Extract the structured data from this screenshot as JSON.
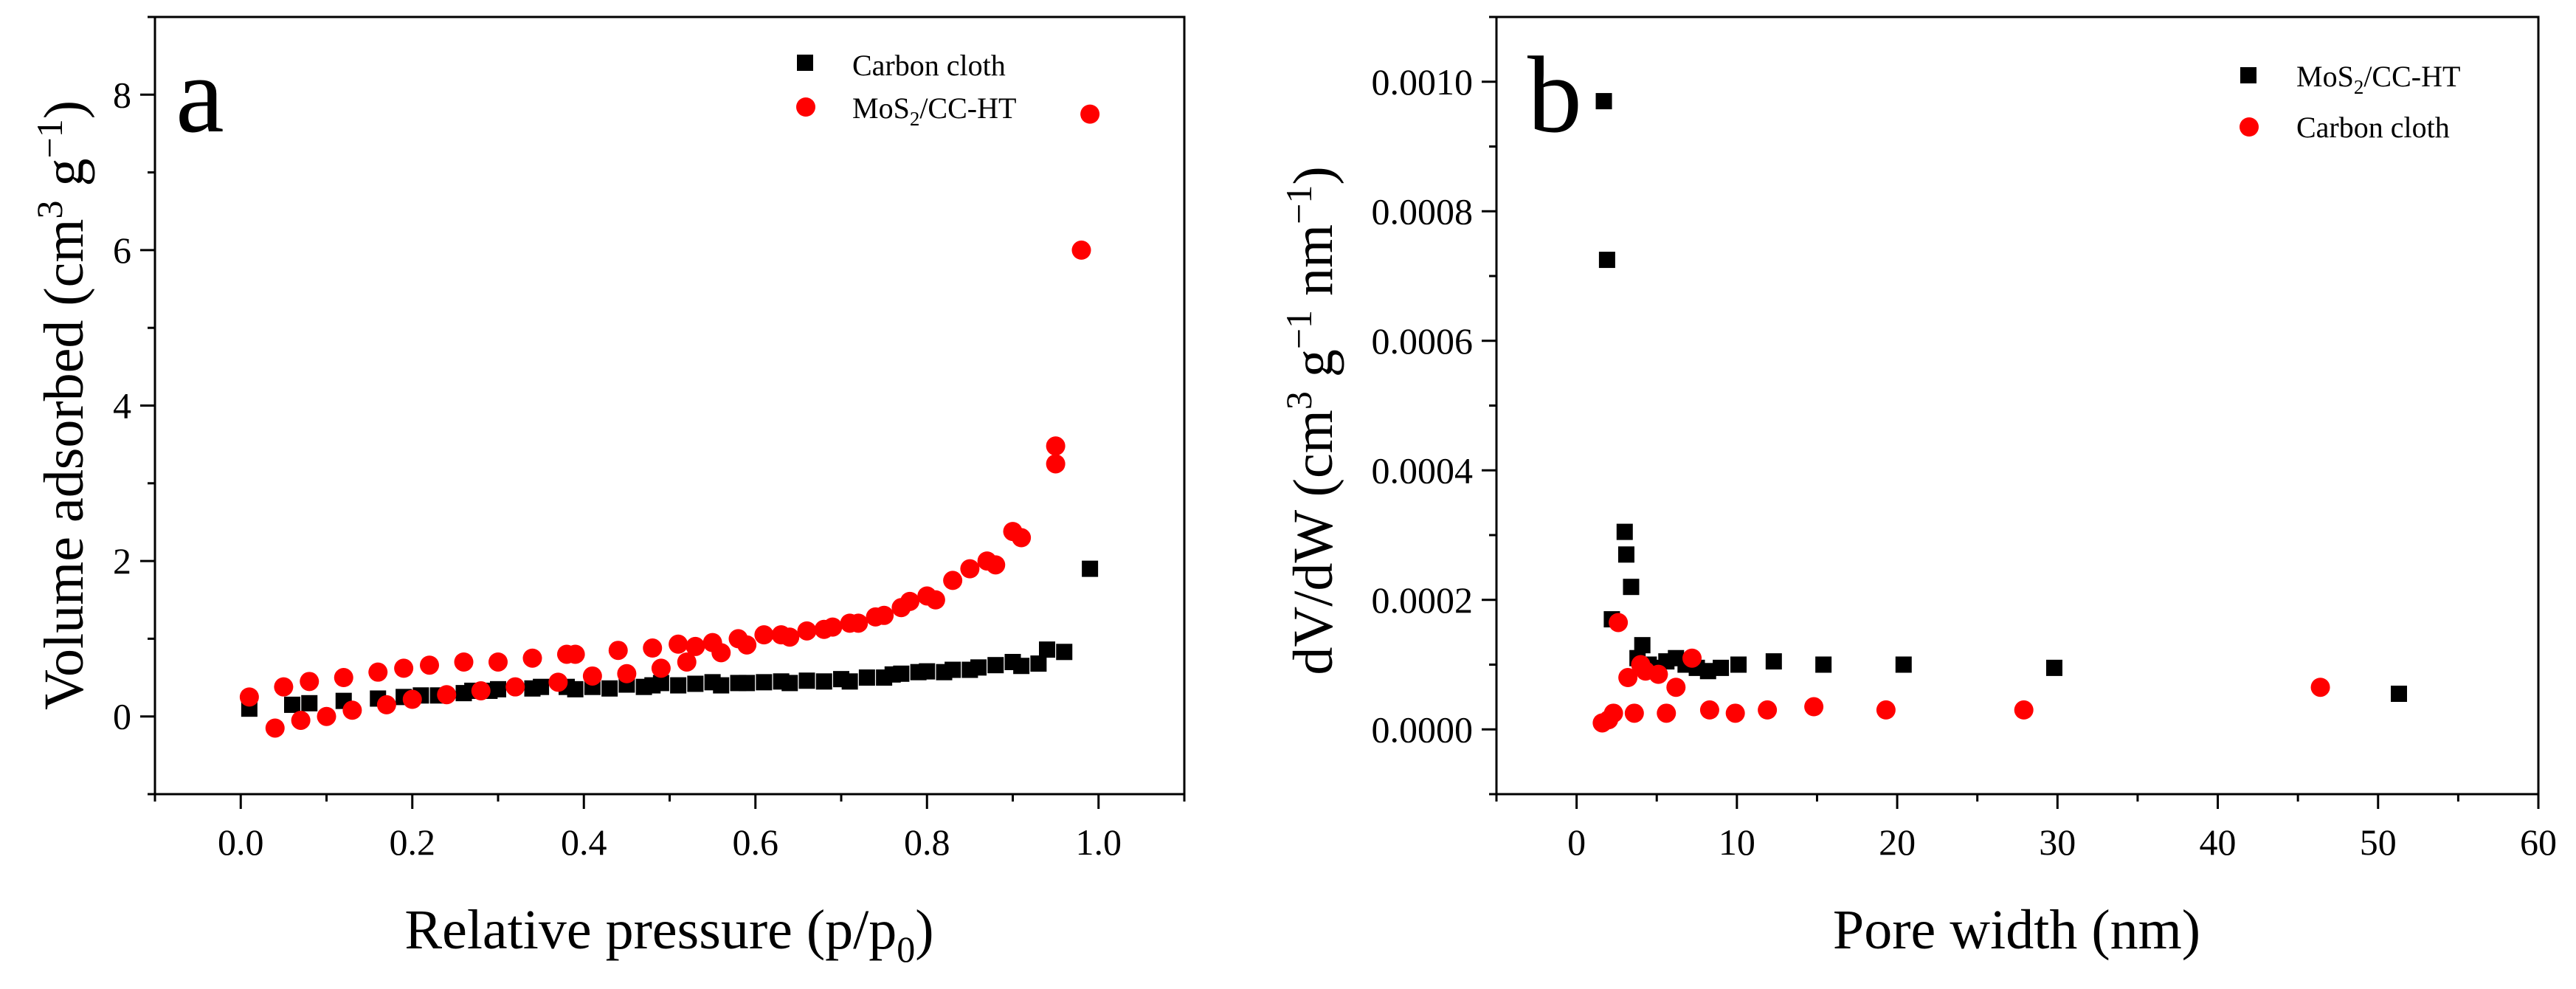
{
  "colors": {
    "black": "#000000",
    "red": "#ff0000"
  },
  "chart_data": [
    {
      "type": "scatter",
      "panel_label": "a",
      "xlabel": "Relative pressure (p/p",
      "xlabel_sub": "0",
      "xlabel_end": ")",
      "ylabel": "Volume adsorbed (cm",
      "ylabel_sup": "3",
      "ylabel_mid": " g",
      "ylabel_sup2": "−1",
      "ylabel_end": ")",
      "xlim": [
        -0.1,
        1.1
      ],
      "ylim": [
        -1,
        9
      ],
      "xticks": [
        0.0,
        0.2,
        0.4,
        0.6,
        0.8,
        1.0
      ],
      "xtick_labels": [
        "0.0",
        "0.2",
        "0.4",
        "0.6",
        "0.8",
        "1.0"
      ],
      "yticks": [
        0,
        2,
        4,
        6,
        8
      ],
      "ytick_labels": [
        "0",
        "2",
        "4",
        "6",
        "8"
      ],
      "legend_position": "top-right",
      "series": [
        {
          "name": "Carbon cloth",
          "marker": "square",
          "color": "#000000",
          "x": [
            0.01,
            0.06,
            0.08,
            0.12,
            0.16,
            0.19,
            0.21,
            0.23,
            0.26,
            0.27,
            0.29,
            0.3,
            0.34,
            0.35,
            0.38,
            0.39,
            0.41,
            0.43,
            0.45,
            0.47,
            0.48,
            0.49,
            0.51,
            0.53,
            0.55,
            0.56,
            0.58,
            0.59,
            0.61,
            0.63,
            0.64,
            0.66,
            0.68,
            0.7,
            0.71,
            0.73,
            0.75,
            0.76,
            0.77,
            0.79,
            0.8,
            0.82,
            0.83,
            0.85,
            0.86,
            0.88,
            0.9,
            0.91,
            0.93,
            0.94,
            0.96,
            0.99
          ],
          "y": [
            0.1,
            0.15,
            0.17,
            0.2,
            0.23,
            0.25,
            0.27,
            0.27,
            0.3,
            0.33,
            0.33,
            0.35,
            0.36,
            0.38,
            0.38,
            0.35,
            0.38,
            0.36,
            0.41,
            0.38,
            0.4,
            0.43,
            0.4,
            0.42,
            0.44,
            0.4,
            0.43,
            0.43,
            0.44,
            0.45,
            0.43,
            0.46,
            0.45,
            0.48,
            0.45,
            0.5,
            0.5,
            0.54,
            0.55,
            0.57,
            0.58,
            0.57,
            0.6,
            0.6,
            0.63,
            0.66,
            0.7,
            0.65,
            0.68,
            0.86,
            0.83,
            1.9
          ]
        },
        {
          "name": "MoS2/CC-HT",
          "name_base": "MoS",
          "name_sub": "2",
          "name_end": "/CC-HT",
          "marker": "circle",
          "color": "#ff0000",
          "x": [
            0.01,
            0.04,
            0.05,
            0.07,
            0.08,
            0.1,
            0.12,
            0.13,
            0.16,
            0.17,
            0.19,
            0.2,
            0.22,
            0.24,
            0.26,
            0.28,
            0.3,
            0.32,
            0.34,
            0.37,
            0.38,
            0.39,
            0.41,
            0.44,
            0.45,
            0.48,
            0.49,
            0.51,
            0.52,
            0.53,
            0.55,
            0.56,
            0.58,
            0.59,
            0.61,
            0.63,
            0.64,
            0.66,
            0.68,
            0.69,
            0.71,
            0.72,
            0.74,
            0.75,
            0.77,
            0.78,
            0.8,
            0.81,
            0.83,
            0.85,
            0.87,
            0.88,
            0.9,
            0.91,
            0.95,
            0.95,
            0.98,
            0.99
          ],
          "y": [
            0.25,
            -0.15,
            0.38,
            -0.05,
            0.45,
            0.0,
            0.5,
            0.08,
            0.57,
            0.15,
            0.62,
            0.22,
            0.66,
            0.28,
            0.7,
            0.33,
            0.7,
            0.38,
            0.75,
            0.44,
            0.8,
            0.8,
            0.52,
            0.85,
            0.55,
            0.88,
            0.62,
            0.93,
            0.7,
            0.9,
            0.95,
            0.82,
            1.0,
            0.92,
            1.05,
            1.05,
            1.02,
            1.1,
            1.12,
            1.15,
            1.2,
            1.2,
            1.28,
            1.3,
            1.4,
            1.48,
            1.55,
            1.5,
            1.75,
            1.9,
            2.0,
            1.95,
            2.38,
            2.3,
            3.48,
            3.25,
            6.0,
            7.75
          ]
        }
      ]
    },
    {
      "type": "scatter",
      "panel_label": "b",
      "xlabel": "Pore width (nm)",
      "ylabel": "dV/dW (cm",
      "ylabel_sup": "3",
      "ylabel_mid": " g",
      "ylabel_sup2": "−1",
      "ylabel_mid2": " nm",
      "ylabel_sup3": "−1",
      "ylabel_end": ")",
      "xlim": [
        -5,
        60
      ],
      "ylim": [
        -0.0001,
        0.0011
      ],
      "xticks": [
        0,
        10,
        20,
        30,
        40,
        50,
        60
      ],
      "xtick_labels": [
        "0",
        "10",
        "20",
        "30",
        "40",
        "50",
        "60"
      ],
      "yticks": [
        0.0,
        0.0002,
        0.0004,
        0.0006,
        0.0008,
        0.001
      ],
      "ytick_labels": [
        "0.0000",
        "0.0002",
        "0.0004",
        "0.0006",
        "0.0008",
        "0.0010"
      ],
      "legend_position": "top-right",
      "series": [
        {
          "name": "MoS2/CC-HT",
          "name_base": "MoS",
          "name_sub": "2",
          "name_end": "/CC-HT",
          "marker": "square",
          "color": "#000000",
          "x": [
            1.7,
            1.9,
            2.2,
            3.0,
            3.1,
            3.4,
            3.8,
            4.1,
            4.5,
            5.0,
            5.6,
            6.2,
            6.8,
            7.5,
            8.2,
            9.0,
            10.1,
            12.3,
            15.4,
            20.4,
            29.8,
            51.3
          ],
          "y": [
            0.00097,
            0.000725,
            0.00017,
            0.000305,
            0.00027,
            0.00022,
            0.00011,
            0.00013,
            0.0001,
            9.5e-05,
            0.000105,
            0.00011,
            0.0001,
            9.5e-05,
            9e-05,
            9.5e-05,
            0.0001,
            0.000105,
            0.0001,
            0.0001,
            9.5e-05,
            5.5e-05
          ]
        },
        {
          "name": "Carbon cloth",
          "marker": "circle",
          "color": "#ff0000",
          "x": [
            1.6,
            2.0,
            2.3,
            2.6,
            3.2,
            3.6,
            4.0,
            4.3,
            5.1,
            5.6,
            6.2,
            7.2,
            8.3,
            9.9,
            11.9,
            14.8,
            19.3,
            27.9,
            46.4
          ],
          "y": [
            1e-05,
            1.5e-05,
            2.5e-05,
            0.000165,
            8e-05,
            2.5e-05,
            0.0001,
            9e-05,
            8.5e-05,
            2.5e-05,
            6.5e-05,
            0.00011,
            3e-05,
            2.5e-05,
            3e-05,
            3.5e-05,
            3e-05,
            3e-05,
            6.5e-05
          ]
        }
      ]
    }
  ]
}
